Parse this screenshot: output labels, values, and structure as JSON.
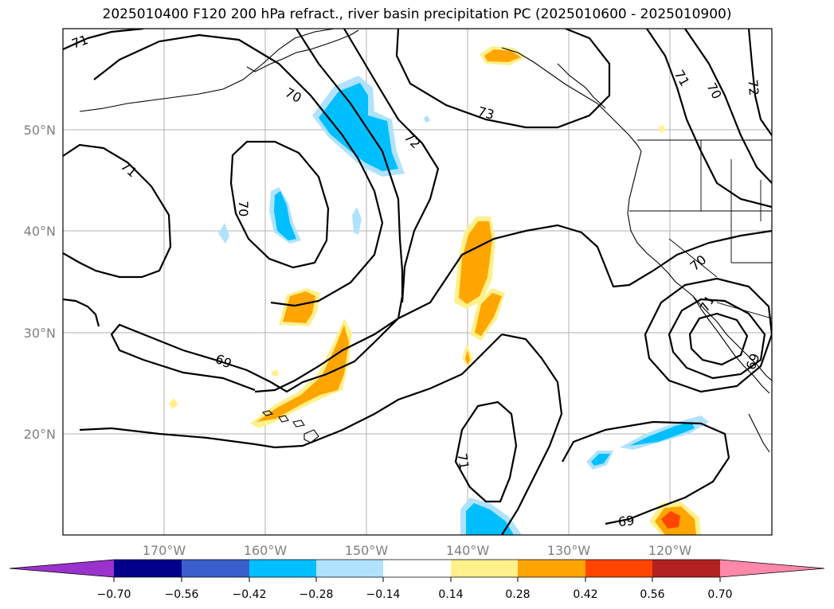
{
  "title": "2025010400 F120 200 hPa refract., river basin precipitation PC (2025010600 - 2025010900)",
  "axes": {
    "lon_labels": [
      "170°W",
      "160°W",
      "150°W",
      "140°W",
      "130°W",
      "120°W"
    ],
    "lat_labels": [
      "50°N",
      "40°N",
      "30°N",
      "20°N"
    ]
  },
  "contour_labels": [
    "71",
    "70",
    "72",
    "73",
    "71",
    "70",
    "69",
    "71",
    "69",
    "71",
    "70",
    "72",
    "70",
    "71",
    "69",
    "70"
  ],
  "colorbar": {
    "ticks": [
      "−0.70",
      "−0.56",
      "−0.42",
      "−0.28",
      "−0.14",
      "0.14",
      "0.28",
      "0.42",
      "0.56",
      "0.70"
    ],
    "colors": [
      "#9a32cd",
      "#00008b",
      "#3a5fcd",
      "#00bfff",
      "#b0e2ff",
      "#ffffff",
      "#fff08c",
      "#ffa500",
      "#ff4500",
      "#b22222",
      "#ff88aa"
    ]
  },
  "colors": {
    "neg_strong": "#00bfff",
    "neg_weak": "#b0e2ff",
    "pos_weak": "#fff08c",
    "pos_mid": "#ffa500",
    "pos_strong": "#ff4500",
    "grid": "#b0b0b0"
  }
}
